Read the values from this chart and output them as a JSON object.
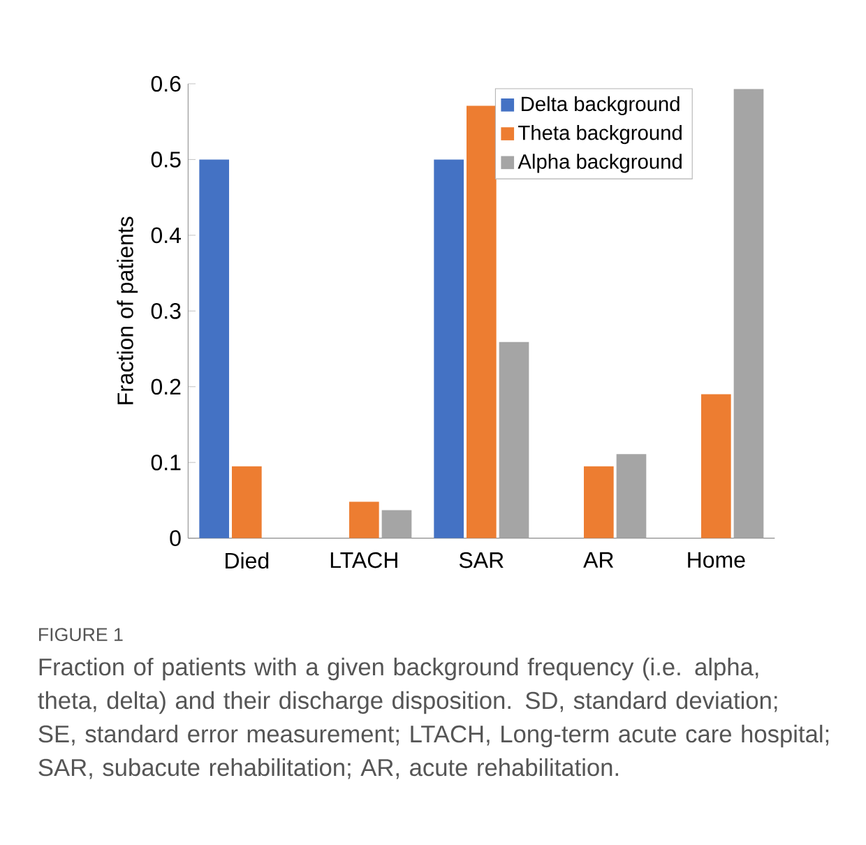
{
  "chart_data": {
    "type": "bar",
    "ylabel": "Fraction of patients",
    "categories": [
      "Died",
      "LTACH",
      "SAR",
      "AR",
      "Home"
    ],
    "series": [
      {
        "name": "Delta background",
        "color": "#4472c4",
        "values": [
          0.5,
          0,
          0.5,
          0,
          0
        ]
      },
      {
        "name": "Theta background",
        "color": "#ed7d31",
        "values": [
          0.095,
          0.048,
          0.571,
          0.095,
          0.19
        ]
      },
      {
        "name": "Alpha background",
        "color": "#a5a5a5",
        "values": [
          0,
          0.037,
          0.259,
          0.111,
          0.593
        ]
      }
    ],
    "ylim": [
      0,
      0.6
    ],
    "yticks": [
      0,
      0.1,
      0.2,
      0.3,
      0.4,
      0.5,
      0.6
    ],
    "legend": "top right",
    "grid": false,
    "annotations": [
      "FIGURE 1",
      "Fraction of patients with a given background frequency (i.e. alpha, theta, delta) and their discharge disposition. SD, standard deviation; SE, standard error measurement; LTACH, Long-term acute care hospital; SAR, subacute rehabilitation; AR, acute rehabilitation."
    ]
  }
}
